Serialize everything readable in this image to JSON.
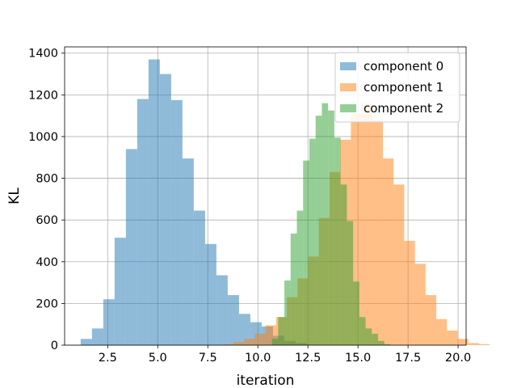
{
  "chart_data": {
    "type": "bar",
    "histogram": true,
    "xlabel": "iteration",
    "ylabel": "KL",
    "xlim": [
      0.35,
      20.4
    ],
    "ylim": [
      0,
      1430
    ],
    "xticks": [
      2.5,
      5.0,
      7.5,
      10.0,
      12.5,
      15.0,
      17.5,
      20.0
    ],
    "xtick_labels": [
      "2.5",
      "5.0",
      "7.5",
      "10.0",
      "12.5",
      "15.0",
      "17.5",
      "20.0"
    ],
    "yticks": [
      0,
      200,
      400,
      600,
      800,
      1000,
      1200,
      1400
    ],
    "ytick_labels": [
      "0",
      "200",
      "400",
      "600",
      "800",
      "1000",
      "1200",
      "1400"
    ],
    "grid": true,
    "legend_position": "top-right",
    "series": [
      {
        "name": "component 0",
        "color": "#1f77b4",
        "alpha": 0.5,
        "bin_start": 1.15,
        "bin_width": 0.565,
        "values": [
          30,
          80,
          220,
          515,
          940,
          1180,
          1370,
          1300,
          1175,
          895,
          645,
          485,
          335,
          240,
          150,
          110,
          90,
          45,
          20,
          10
        ]
      },
      {
        "name": "component 1",
        "color": "#ff7f0e",
        "alpha": 0.5,
        "bin_start": 8.25,
        "bin_width": 0.533,
        "values": [
          5,
          15,
          30,
          55,
          95,
          135,
          230,
          320,
          425,
          610,
          830,
          985,
          1110,
          1160,
          1080,
          895,
          770,
          500,
          390,
          240,
          125,
          70,
          30,
          10,
          5
        ]
      },
      {
        "name": "component 2",
        "color": "#2ca02c",
        "alpha": 0.5,
        "bin_start": 10.7,
        "bin_width": 0.312,
        "values": [
          30,
          135,
          310,
          535,
          645,
          885,
          990,
          1100,
          1160,
          1125,
          995,
          770,
          595,
          305,
          135,
          80,
          55,
          20,
          5
        ]
      }
    ]
  }
}
